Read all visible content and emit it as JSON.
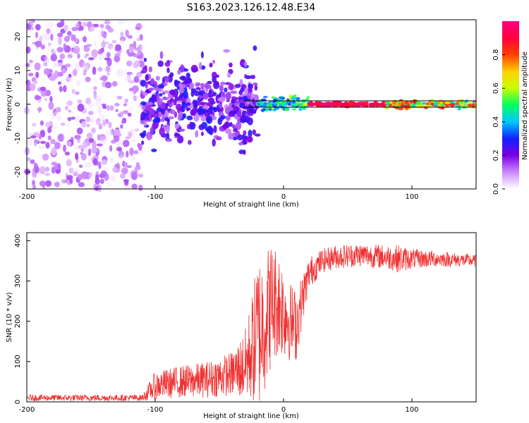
{
  "title": "S163.2023.126.12.48.E34",
  "chart_data": [
    {
      "type": "heatmap",
      "xlabel": "Height of straight line (km)",
      "ylabel": "Frequency (Hz)",
      "xlim": [
        -200,
        150
      ],
      "ylim": [
        -25,
        25
      ],
      "xticks": [
        "-200",
        "-100",
        "0",
        "100"
      ],
      "yticks": [
        "-20",
        "-10",
        "0",
        "10",
        "20"
      ],
      "colorbar": {
        "label": "Normalized spectral amplitude",
        "ticks": [
          "0.0",
          "0.2",
          "0.4",
          "0.6",
          "0.8"
        ],
        "range": [
          0,
          1
        ],
        "colors": [
          "#ffffff",
          "#cc88ff",
          "#7a00e6",
          "#1020ff",
          "#00c8ff",
          "#00ff60",
          "#c8ff00",
          "#ffd000",
          "#ff4000",
          "#ff0040",
          "#ff0080"
        ]
      },
      "description_regions": [
        {
          "x_range": [
            -200,
            -110
          ],
          "freq_range": [
            -25,
            25
          ],
          "amplitude": [
            0.0,
            0.15
          ],
          "pattern": "diffuse broadband noise"
        },
        {
          "x_range": [
            -110,
            -20
          ],
          "freq_range": [
            -10,
            10
          ],
          "amplitude": [
            0.1,
            0.3
          ],
          "pattern": "narrowing band"
        },
        {
          "x_range": [
            -20,
            20
          ],
          "freq_range": [
            -1.5,
            2
          ],
          "amplitude": [
            0.3,
            0.6
          ],
          "pattern": "narrow line"
        },
        {
          "x_range": [
            20,
            80
          ],
          "freq_range": [
            -0.5,
            0.5
          ],
          "amplitude": [
            0.85,
            1.0
          ],
          "pattern": "carrier line"
        },
        {
          "x_range": [
            80,
            150
          ],
          "freq_range": [
            -1,
            1
          ],
          "amplitude": [
            0.4,
            0.9
          ],
          "pattern": "carrier line"
        }
      ]
    },
    {
      "type": "line",
      "xlabel": "Height of straight line (km)",
      "ylabel": "SNR (10 * v/v)",
      "xlim": [
        -200,
        150
      ],
      "ylim": [
        0,
        420
      ],
      "xticks": [
        "-200",
        "-100",
        "0",
        "100"
      ],
      "yticks": [
        "0",
        "100",
        "200",
        "300",
        "400"
      ],
      "color": "#f03030",
      "x": [
        -200,
        -150,
        -110,
        -100,
        -80,
        -60,
        -40,
        -30,
        -25,
        -20,
        -15,
        -10,
        -5,
        0,
        5,
        10,
        15,
        20,
        30,
        40,
        60,
        80,
        90,
        100,
        120,
        150
      ],
      "y_mean": [
        10,
        10,
        10,
        40,
        50,
        55,
        70,
        90,
        130,
        170,
        200,
        240,
        250,
        230,
        200,
        190,
        260,
        320,
        350,
        360,
        365,
        360,
        355,
        355,
        355,
        350
      ],
      "y_spread": [
        8,
        8,
        8,
        35,
        40,
        45,
        55,
        90,
        130,
        200,
        180,
        160,
        140,
        120,
        100,
        90,
        60,
        40,
        30,
        30,
        30,
        30,
        35,
        25,
        20,
        15
      ]
    }
  ]
}
